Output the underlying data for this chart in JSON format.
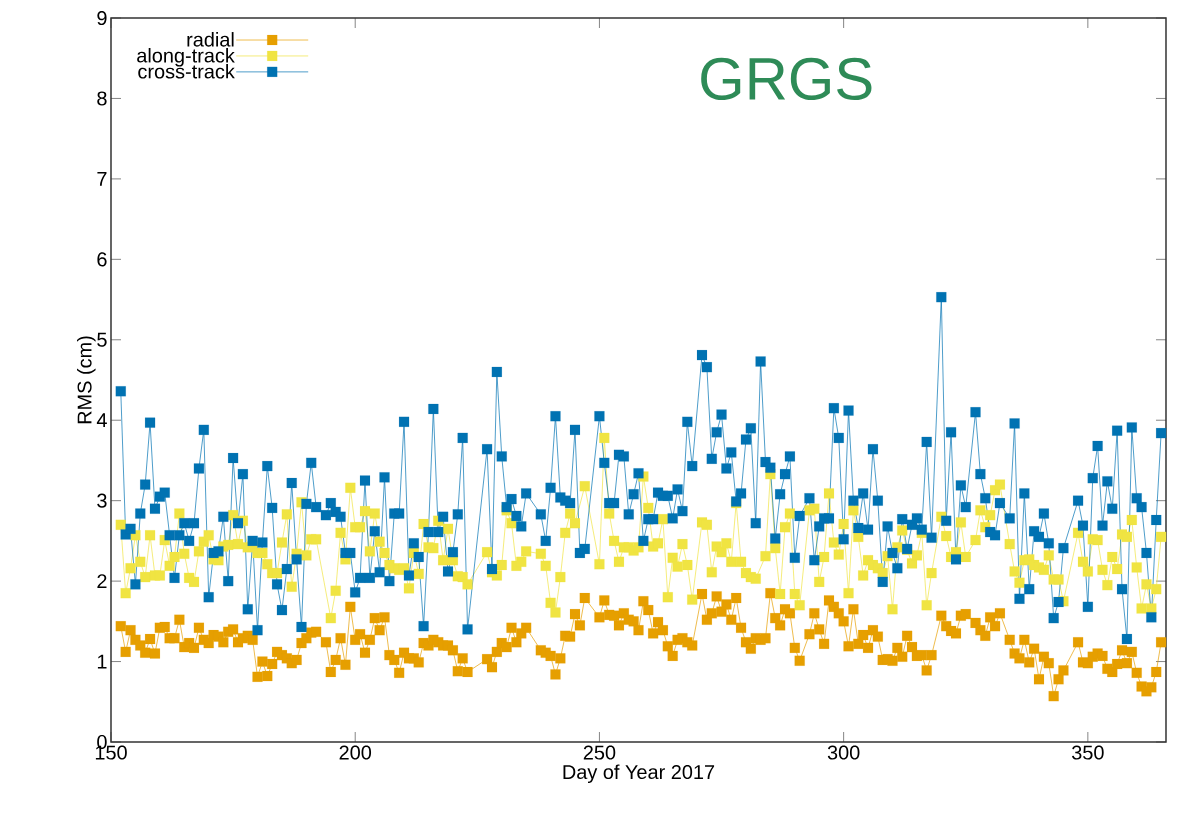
{
  "chart_data": {
    "type": "line",
    "xlabel": "Day of Year 2017",
    "ylabel": "RMS (cm)",
    "annotations": [
      "GRGS"
    ],
    "xlim": [
      150,
      366
    ],
    "ylim": [
      0,
      9
    ],
    "xticks": [
      150,
      200,
      250,
      300,
      350
    ],
    "yticks": [
      0,
      1,
      2,
      3,
      4,
      5,
      6,
      7,
      8,
      9
    ],
    "grid": false,
    "legend": "top left",
    "marker": "square",
    "line_style": "solid",
    "series": [
      {
        "name": "radial",
        "color": "#e69f00",
        "x": [
          152,
          153,
          154,
          155,
          156,
          157,
          158,
          159,
          160,
          161,
          162,
          163,
          164,
          165,
          166,
          167,
          168,
          169,
          170,
          171,
          172,
          173,
          174,
          175,
          176,
          177,
          178,
          179,
          180,
          181,
          182,
          183,
          184,
          185,
          186,
          187,
          188,
          189,
          190,
          191,
          192,
          194,
          195,
          196,
          197,
          198,
          199,
          200,
          201,
          202,
          203,
          204,
          205,
          206,
          207,
          208,
          209,
          210,
          211,
          212,
          213,
          214,
          215,
          216,
          217,
          218,
          219,
          220,
          221,
          222,
          223,
          227,
          228,
          229,
          230,
          231,
          232,
          233,
          234,
          235,
          238,
          239,
          240,
          241,
          242,
          243,
          244,
          245,
          246,
          247,
          250,
          251,
          252,
          253,
          254,
          255,
          256,
          257,
          258,
          259,
          260,
          261,
          262,
          263,
          264,
          265,
          266,
          267,
          268,
          269,
          271,
          272,
          273,
          274,
          275,
          276,
          277,
          278,
          279,
          280,
          281,
          282,
          283,
          284,
          285,
          286,
          287,
          288,
          289,
          290,
          291,
          293,
          294,
          295,
          296,
          297,
          298,
          299,
          300,
          301,
          302,
          303,
          304,
          305,
          306,
          307,
          308,
          309,
          310,
          311,
          312,
          313,
          314,
          315,
          316,
          317,
          318,
          320,
          321,
          322,
          323,
          324,
          325,
          327,
          328,
          329,
          330,
          331,
          332,
          334,
          335,
          336,
          337,
          338,
          339,
          340,
          341,
          342,
          343,
          344,
          345,
          348,
          349,
          350,
          351,
          352,
          353,
          354,
          355,
          356,
          357,
          358,
          359,
          360,
          361,
          362,
          363,
          364,
          365
        ],
        "values": [
          1.44,
          1.12,
          1.39,
          1.27,
          1.2,
          1.11,
          1.28,
          1.1,
          1.42,
          1.43,
          1.29,
          1.29,
          1.52,
          1.18,
          1.23,
          1.17,
          1.42,
          1.27,
          1.23,
          1.33,
          1.31,
          1.24,
          1.37,
          1.4,
          1.24,
          1.29,
          1.32,
          1.27,
          0.81,
          1.0,
          0.82,
          0.97,
          1.12,
          1.08,
          1.04,
          0.98,
          1.02,
          1.23,
          1.29,
          1.36,
          1.37,
          1.24,
          0.87,
          1.02,
          1.29,
          0.96,
          1.68,
          1.27,
          1.34,
          1.11,
          1.27,
          1.54,
          1.39,
          1.55,
          1.08,
          1.02,
          0.86,
          1.11,
          1.04,
          1.04,
          0.99,
          1.23,
          1.2,
          1.27,
          1.24,
          1.2,
          1.2,
          1.14,
          0.88,
          1.04,
          0.87,
          1.03,
          0.93,
          1.12,
          1.23,
          1.18,
          1.42,
          1.24,
          1.35,
          1.42,
          1.14,
          1.11,
          1.07,
          0.84,
          1.04,
          1.32,
          1.31,
          1.59,
          1.45,
          1.79,
          1.55,
          1.76,
          1.58,
          1.57,
          1.45,
          1.6,
          1.52,
          1.5,
          1.39,
          1.75,
          1.64,
          1.35,
          1.49,
          1.39,
          1.19,
          1.07,
          1.27,
          1.29,
          1.24,
          1.2,
          1.84,
          1.52,
          1.6,
          1.81,
          1.62,
          1.71,
          1.52,
          1.79,
          1.42,
          1.24,
          1.16,
          1.29,
          1.27,
          1.29,
          1.85,
          1.54,
          1.45,
          1.65,
          1.6,
          1.17,
          1.01,
          1.34,
          1.6,
          1.4,
          1.22,
          1.76,
          1.68,
          1.6,
          1.5,
          1.19,
          1.65,
          1.22,
          1.33,
          1.17,
          1.39,
          1.31,
          1.02,
          1.03,
          1.01,
          1.17,
          1.06,
          1.32,
          1.18,
          1.07,
          1.08,
          0.89,
          1.08,
          1.57,
          1.44,
          1.38,
          1.35,
          1.57,
          1.59,
          1.48,
          1.39,
          1.32,
          1.55,
          1.44,
          1.6,
          1.27,
          1.1,
          1.04,
          1.27,
          0.99,
          1.16,
          0.78,
          1.06,
          0.98,
          0.57,
          0.78,
          0.89,
          1.24,
          0.99,
          0.98,
          1.06,
          1.1,
          1.07,
          0.91,
          0.87,
          0.97,
          1.14,
          0.98,
          1.12,
          0.86,
          0.69,
          0.63,
          0.68,
          0.87,
          1.24
        ]
      },
      {
        "name": "along-track",
        "color": "#f0e442",
        "x": [
          152,
          153,
          154,
          155,
          156,
          157,
          158,
          159,
          160,
          161,
          162,
          163,
          164,
          165,
          166,
          167,
          168,
          169,
          170,
          171,
          172,
          173,
          174,
          175,
          176,
          177,
          178,
          179,
          180,
          181,
          182,
          183,
          184,
          185,
          186,
          187,
          188,
          189,
          190,
          191,
          192,
          195,
          196,
          197,
          198,
          199,
          200,
          201,
          202,
          203,
          204,
          205,
          206,
          207,
          208,
          209,
          210,
          211,
          212,
          213,
          214,
          215,
          216,
          217,
          218,
          219,
          220,
          221,
          222,
          223,
          227,
          228,
          229,
          230,
          231,
          232,
          233,
          234,
          235,
          238,
          239,
          240,
          241,
          242,
          243,
          244,
          245,
          247,
          250,
          251,
          252,
          253,
          254,
          255,
          256,
          257,
          258,
          259,
          260,
          261,
          262,
          263,
          264,
          265,
          266,
          267,
          268,
          269,
          271,
          272,
          273,
          274,
          275,
          276,
          277,
          278,
          279,
          280,
          281,
          282,
          284,
          285,
          286,
          287,
          288,
          289,
          290,
          291,
          293,
          294,
          295,
          296,
          297,
          298,
          299,
          300,
          301,
          302,
          303,
          304,
          305,
          306,
          307,
          308,
          309,
          310,
          311,
          312,
          313,
          314,
          315,
          316,
          317,
          318,
          320,
          321,
          322,
          323,
          324,
          325,
          327,
          328,
          329,
          330,
          331,
          332,
          334,
          335,
          336,
          337,
          338,
          339,
          340,
          341,
          342,
          343,
          344,
          345,
          348,
          349,
          350,
          351,
          352,
          353,
          354,
          355,
          356,
          357,
          358,
          359,
          360,
          361,
          362,
          363,
          364,
          365
        ],
        "values": [
          2.7,
          1.85,
          2.16,
          2.57,
          2.24,
          2.05,
          2.57,
          2.07,
          2.07,
          2.51,
          2.19,
          2.3,
          2.84,
          2.34,
          2.04,
          1.99,
          2.37,
          2.49,
          2.57,
          2.27,
          2.26,
          2.43,
          2.45,
          2.82,
          2.46,
          2.75,
          2.42,
          2.43,
          2.35,
          2.35,
          2.21,
          2.1,
          2.1,
          2.48,
          2.83,
          1.93,
          2.34,
          2.98,
          2.32,
          2.52,
          2.52,
          1.54,
          1.88,
          2.6,
          2.27,
          3.16,
          2.67,
          2.67,
          2.87,
          2.37,
          2.84,
          2.49,
          2.35,
          2.2,
          2.16,
          2.14,
          2.16,
          1.91,
          2.35,
          2.09,
          2.71,
          2.42,
          2.41,
          2.75,
          2.26,
          2.65,
          2.26,
          2.06,
          2.05,
          1.96,
          2.36,
          2.11,
          2.07,
          2.2,
          2.88,
          2.72,
          2.19,
          2.24,
          2.37,
          2.34,
          2.19,
          1.73,
          1.61,
          2.05,
          2.6,
          2.84,
          2.72,
          3.18,
          2.21,
          3.78,
          2.84,
          2.5,
          2.24,
          2.42,
          2.42,
          2.38,
          2.42,
          3.3,
          2.91,
          2.43,
          2.47,
          2.77,
          1.8,
          2.29,
          2.18,
          2.46,
          2.2,
          1.77,
          2.73,
          2.7,
          2.11,
          2.43,
          2.36,
          2.47,
          2.24,
          2.97,
          2.24,
          2.1,
          2.05,
          2.03,
          2.31,
          3.33,
          2.41,
          1.84,
          2.67,
          2.84,
          1.84,
          1.7,
          2.88,
          2.9,
          1.99,
          2.3,
          3.09,
          2.48,
          2.33,
          2.71,
          1.85,
          2.88,
          2.55,
          2.07,
          2.26,
          2.2,
          2.16,
          2.1,
          2.31,
          1.65,
          2.42,
          2.63,
          2.39,
          2.22,
          2.32,
          2.6,
          1.7,
          2.1,
          2.8,
          2.56,
          2.3,
          2.36,
          2.73,
          2.3,
          2.51,
          2.88,
          2.67,
          2.82,
          3.13,
          3.2,
          2.46,
          2.12,
          1.98,
          2.26,
          2.27,
          2.2,
          2.17,
          2.14,
          2.32,
          2.02,
          2.02,
          1.75,
          2.6,
          2.24,
          2.12,
          2.52,
          2.51,
          2.14,
          1.95,
          2.3,
          2.15,
          2.58,
          2.55,
          2.76,
          2.17,
          1.66,
          1.96,
          1.66,
          1.9,
          2.55
        ]
      },
      {
        "name": "cross-track",
        "color": "#0072b2",
        "x": [
          152,
          153,
          154,
          155,
          156,
          157,
          158,
          159,
          160,
          161,
          162,
          163,
          164,
          165,
          166,
          167,
          168,
          169,
          170,
          171,
          172,
          173,
          174,
          175,
          176,
          177,
          178,
          179,
          180,
          181,
          182,
          183,
          184,
          185,
          186,
          187,
          188,
          189,
          190,
          191,
          192,
          194,
          195,
          196,
          197,
          198,
          199,
          200,
          201,
          202,
          203,
          204,
          205,
          206,
          207,
          208,
          209,
          210,
          211,
          212,
          213,
          214,
          215,
          216,
          217,
          218,
          219,
          220,
          221,
          222,
          223,
          227,
          228,
          229,
          230,
          231,
          232,
          233,
          234,
          235,
          238,
          239,
          240,
          241,
          242,
          243,
          244,
          245,
          246,
          247,
          250,
          251,
          252,
          253,
          254,
          255,
          256,
          257,
          258,
          259,
          260,
          261,
          262,
          263,
          264,
          265,
          266,
          267,
          268,
          269,
          271,
          272,
          273,
          274,
          275,
          276,
          277,
          278,
          279,
          280,
          281,
          282,
          283,
          284,
          285,
          286,
          287,
          288,
          289,
          290,
          291,
          293,
          294,
          295,
          296,
          297,
          298,
          299,
          300,
          301,
          302,
          303,
          304,
          305,
          306,
          307,
          308,
          309,
          310,
          311,
          312,
          313,
          314,
          315,
          316,
          317,
          318,
          320,
          321,
          322,
          323,
          324,
          325,
          327,
          328,
          329,
          330,
          331,
          332,
          334,
          335,
          336,
          337,
          338,
          339,
          340,
          341,
          342,
          343,
          344,
          345,
          348,
          349,
          350,
          351,
          352,
          353,
          354,
          355,
          356,
          357,
          358,
          359,
          360,
          361,
          362,
          363,
          364,
          365
        ],
        "values": [
          4.36,
          2.58,
          2.65,
          1.96,
          2.84,
          3.2,
          3.97,
          2.9,
          3.05,
          3.1,
          2.57,
          2.04,
          2.57,
          2.72,
          2.5,
          2.72,
          3.4,
          3.88,
          1.8,
          2.35,
          2.37,
          2.8,
          2.0,
          3.53,
          2.72,
          3.33,
          1.65,
          2.5,
          1.39,
          2.48,
          3.43,
          2.91,
          1.96,
          1.64,
          2.15,
          3.22,
          2.27,
          1.43,
          2.96,
          3.47,
          2.92,
          2.82,
          2.97,
          2.86,
          2.8,
          2.35,
          2.35,
          1.86,
          2.04,
          3.25,
          2.04,
          2.62,
          2.11,
          3.29,
          2.0,
          2.84,
          2.84,
          3.98,
          2.07,
          2.47,
          2.3,
          1.44,
          2.61,
          4.14,
          2.61,
          2.8,
          2.12,
          2.36,
          2.83,
          3.78,
          1.4,
          3.64,
          2.15,
          4.6,
          3.55,
          2.92,
          3.02,
          2.81,
          2.68,
          3.09,
          2.83,
          2.5,
          3.16,
          4.05,
          3.04,
          3.0,
          2.97,
          3.88,
          2.35,
          2.4,
          4.05,
          3.47,
          2.97,
          2.97,
          3.57,
          3.55,
          2.83,
          3.08,
          3.34,
          2.5,
          2.77,
          2.77,
          3.1,
          3.06,
          3.06,
          2.78,
          3.14,
          2.87,
          3.98,
          3.43,
          4.81,
          4.66,
          3.52,
          3.85,
          4.07,
          3.4,
          3.6,
          2.99,
          3.09,
          3.76,
          3.9,
          2.72,
          4.73,
          3.48,
          3.41,
          2.53,
          3.08,
          3.33,
          3.55,
          2.29,
          2.81,
          3.03,
          2.26,
          2.68,
          2.78,
          2.78,
          4.15,
          3.78,
          2.52,
          4.12,
          3.0,
          2.66,
          3.09,
          2.64,
          3.64,
          3.0,
          1.99,
          2.68,
          2.35,
          2.16,
          2.77,
          2.4,
          2.7,
          2.78,
          2.64,
          3.73,
          2.54,
          5.53,
          2.75,
          3.85,
          2.27,
          3.19,
          2.92,
          4.1,
          3.33,
          3.03,
          2.61,
          2.57,
          2.97,
          2.78,
          3.96,
          1.78,
          3.09,
          1.9,
          2.62,
          2.55,
          2.84,
          2.47,
          1.54,
          1.74,
          2.41,
          3.0,
          2.69,
          1.68,
          3.28,
          3.68,
          2.69,
          3.24,
          2.9,
          3.87,
          1.9,
          1.28,
          3.91,
          3.03,
          2.92,
          2.35,
          1.55,
          2.76,
          3.84
        ]
      }
    ]
  }
}
